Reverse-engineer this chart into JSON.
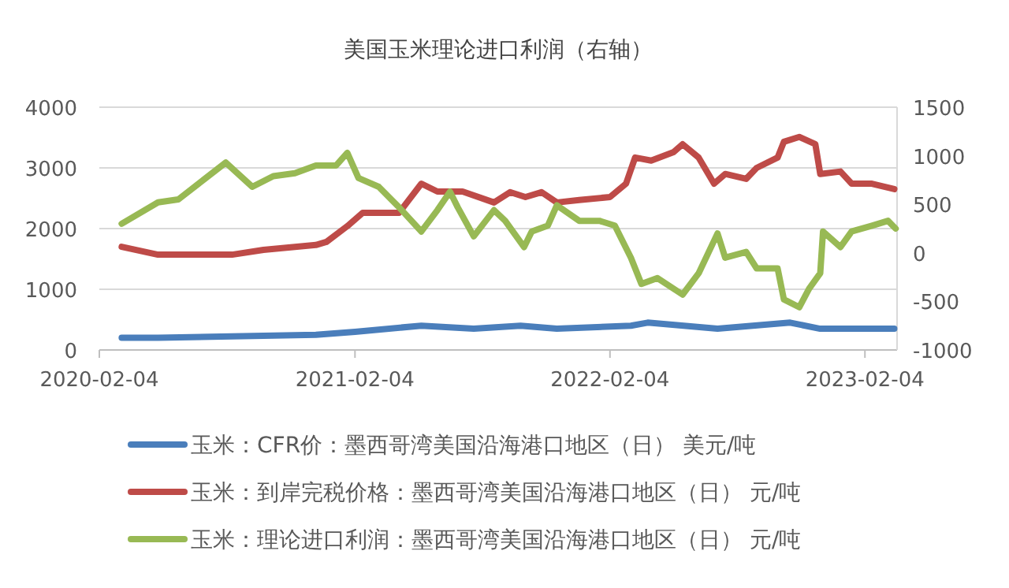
{
  "chart_data": {
    "type": "line",
    "title": "美国玉米理论进口利润（右轴）",
    "xlim": [
      "2020-02-04",
      "2023-03-22"
    ],
    "xticks": [
      {
        "value": "2020-02-04",
        "label": "2020-02-04"
      },
      {
        "value": "2021-02-04",
        "label": "2021-02-04"
      },
      {
        "value": "2022-02-04",
        "label": "2022-02-04"
      },
      {
        "value": "2023-02-04",
        "label": "2023-02-04"
      }
    ],
    "ylim": [
      0,
      4000
    ],
    "yticks": [
      0,
      1000,
      2000,
      3000,
      4000
    ],
    "y2lim": [
      -1000,
      1500
    ],
    "y2ticks": [
      -1000,
      -500,
      0,
      500,
      1000,
      1500
    ],
    "grid": "y",
    "legend": "bottom",
    "line_style": "solid",
    "marker": "none",
    "series": [
      {
        "name": "玉米：CFR价：墨西哥湾美国沿海港口地区（日） 美元/吨",
        "color": "#4a7ebb",
        "x": [
          "2020-03-07",
          "2020-04-28",
          "2020-12-10",
          "2021-02-04",
          "2021-05-10",
          "2021-07-24",
          "2021-09-29",
          "2021-11-20",
          "2022-03-06",
          "2022-03-30",
          "2022-07-08",
          "2022-10-20",
          "2022-12-02",
          "2023-03-18"
        ],
        "values": [
          200,
          200,
          250,
          300,
          400,
          350,
          400,
          350,
          400,
          450,
          350,
          450,
          350,
          350
        ]
      },
      {
        "name": "玉米：到岸完税价格：墨西哥湾美国沿海港口地区（日） 元/吨",
        "color": "#be4b48",
        "x": [
          "2020-03-07",
          "2020-04-28",
          "2020-08-12",
          "2020-09-26",
          "2020-12-10",
          "2020-12-25",
          "2021-01-24",
          "2021-02-15",
          "2021-04-08",
          "2021-05-10",
          "2021-06-02",
          "2021-06-24",
          "2021-07-08",
          "2021-08-22",
          "2021-09-14",
          "2021-10-06",
          "2021-10-29",
          "2021-11-20",
          "2021-12-22",
          "2022-02-04",
          "2022-02-27",
          "2022-03-12",
          "2022-04-04",
          "2022-05-06",
          "2022-05-19",
          "2022-06-11",
          "2022-07-03",
          "2022-07-19",
          "2022-08-18",
          "2022-09-02",
          "2022-10-02",
          "2022-10-11",
          "2022-11-02",
          "2022-11-25",
          "2022-12-02",
          "2022-12-31",
          "2023-01-16",
          "2023-02-14",
          "2023-03-18"
        ],
        "values": [
          1700,
          1570,
          1570,
          1650,
          1730,
          1780,
          2040,
          2260,
          2260,
          2740,
          2610,
          2610,
          2610,
          2430,
          2600,
          2520,
          2600,
          2430,
          2470,
          2520,
          2740,
          3170,
          3120,
          3260,
          3390,
          3170,
          2740,
          2900,
          2820,
          3000,
          3170,
          3430,
          3510,
          3390,
          2900,
          2940,
          2740,
          2740,
          2650
        ]
      },
      {
        "name": "玉米：理论进口利润：墨西哥湾美国沿海港口地区（日） 元/吨",
        "color": "#98b954",
        "axis": "y2",
        "x": [
          "2020-03-07",
          "2020-04-28",
          "2020-05-27",
          "2020-08-03",
          "2020-09-10",
          "2020-10-10",
          "2020-11-10",
          "2020-12-10",
          "2021-01-08",
          "2021-01-24",
          "2021-02-09",
          "2021-03-10",
          "2021-04-08",
          "2021-05-10",
          "2021-06-02",
          "2021-06-20",
          "2021-07-01",
          "2021-07-24",
          "2021-08-22",
          "2021-09-07",
          "2021-10-04",
          "2021-10-15",
          "2021-11-07",
          "2021-11-20",
          "2021-12-22",
          "2022-01-20",
          "2022-02-11",
          "2022-03-06",
          "2022-03-21",
          "2022-04-13",
          "2022-05-19",
          "2022-06-11",
          "2022-07-08",
          "2022-07-19",
          "2022-08-18",
          "2022-09-02",
          "2022-10-02",
          "2022-10-11",
          "2022-11-02",
          "2022-11-16",
          "2022-12-02",
          "2022-12-06",
          "2022-12-31",
          "2023-01-16",
          "2023-02-14",
          "2023-03-09",
          "2023-03-20"
        ],
        "values": [
          300,
          520,
          550,
          930,
          680,
          790,
          820,
          900,
          900,
          1030,
          770,
          680,
          470,
          220,
          440,
          630,
          470,
          170,
          440,
          330,
          60,
          220,
          280,
          490,
          330,
          330,
          280,
          -50,
          -320,
          -260,
          -430,
          -210,
          200,
          -50,
          10,
          -160,
          -160,
          -480,
          -560,
          -370,
          -210,
          220,
          60,
          220,
          280,
          330,
          250
        ]
      }
    ]
  }
}
